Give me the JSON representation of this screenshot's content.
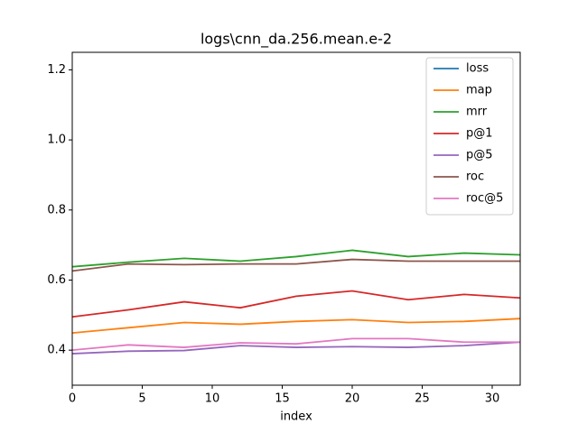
{
  "chart_data": {
    "type": "line",
    "title": "logs\\cnn_da.256.mean.e-2",
    "x_label": "index",
    "x": [
      0,
      4,
      8,
      12,
      16,
      20,
      24,
      28,
      32
    ],
    "series": [
      {
        "name": "loss",
        "color": "#1f77b4",
        "values": [
          null,
          null,
          null,
          null,
          null,
          null,
          null,
          null,
          null
        ]
      },
      {
        "name": "map",
        "color": "#ff7f0e",
        "values": [
          0.449,
          0.464,
          0.479,
          0.474,
          0.482,
          0.487,
          0.479,
          0.482,
          0.49
        ]
      },
      {
        "name": "mrr",
        "color": "#2ca02c",
        "values": [
          0.638,
          0.651,
          0.662,
          0.654,
          0.667,
          0.685,
          0.667,
          0.677,
          0.672
        ]
      },
      {
        "name": "p@1",
        "color": "#d62728",
        "values": [
          0.495,
          0.515,
          0.538,
          0.521,
          0.554,
          0.569,
          0.544,
          0.559,
          0.549
        ]
      },
      {
        "name": "p@5",
        "color": "#9467bd",
        "values": [
          0.39,
          0.397,
          0.399,
          0.413,
          0.408,
          0.41,
          0.408,
          0.413,
          0.423
        ]
      },
      {
        "name": "roc",
        "color": "#8c564b",
        "values": [
          0.626,
          0.646,
          0.644,
          0.646,
          0.646,
          0.659,
          0.654,
          0.654,
          0.654
        ]
      },
      {
        "name": "roc@5",
        "color": "#e377c2",
        "values": [
          0.4,
          0.415,
          0.408,
          0.421,
          0.418,
          0.433,
          0.433,
          0.423,
          0.423
        ]
      }
    ],
    "xlim": [
      0,
      32
    ],
    "xticks": [
      0,
      5,
      10,
      15,
      20,
      25,
      30
    ],
    "ylim": [
      0.3,
      1.25
    ],
    "yticks": [
      0.4,
      0.6,
      0.8,
      {
        "value": 1.0,
        "label": "1.0"
      },
      1.2
    ],
    "grid": false,
    "legend": "upper right"
  }
}
